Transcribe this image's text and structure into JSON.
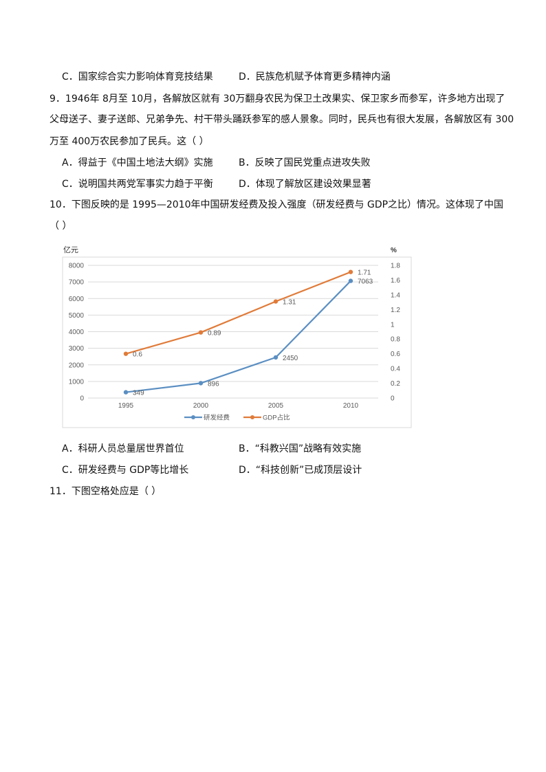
{
  "q8": {
    "option_c": "C．国家综合实力影响体育竞技结果",
    "option_d": "D．民族危机赋予体育更多精神内涵"
  },
  "q9": {
    "stem_lines": [
      "9．1946年 8月至 10月，各解放区就有 30万翻身农民为保卫土改果实、保卫家乡而参军，许多地方出现了",
      "父母送子、妻子送郎、兄弟争先、村干带头踊跃参军的感人景象。同时，民兵也有很大发展，各解放区有 300",
      "万至 400万农民参加了民兵。这（   ）"
    ],
    "option_a": "A．得益于《中国土地法大纲》实施",
    "option_b": "B．反映了国民党重点进攻失败",
    "option_c": "C．说明国共两党军事实力趋于平衡",
    "option_d": "D．体现了解放区建设效果显著"
  },
  "q10": {
    "stem_lines": [
      "10．下图反映的是 1995—2010年中国研发经费及投入强度（研发经费与 GDP之比）情况。这体现了中国",
      "（   ）"
    ],
    "option_a": "A．科研人员总量居世界首位",
    "option_b": "B．“科教兴国”战略有效实施",
    "option_c": "C．研发经费与 GDP等比增长",
    "option_d": "D．“科技创新”已成顶层设计"
  },
  "q11": {
    "stem": "11．下图空格处应是（   ）"
  },
  "chart_data": {
    "type": "line",
    "categories": [
      "1995",
      "2000",
      "2005",
      "2010"
    ],
    "y_left_label": "亿元",
    "y_right_label": "%",
    "ylim_left": [
      0,
      8000
    ],
    "yticks_left": [
      "0",
      "1000",
      "2000",
      "3000",
      "4000",
      "5000",
      "6000",
      "7000",
      "8000"
    ],
    "ylim_right": [
      0,
      1.8
    ],
    "yticks_right": [
      "0",
      "0.2",
      "0.4",
      "0.6",
      "0.8",
      "1",
      "1.2",
      "1.4",
      "1.6",
      "1.8"
    ],
    "grid": true,
    "legend_position": "bottom",
    "series": [
      {
        "name": "研发经费",
        "axis": "left",
        "values": [
          349,
          896,
          2450,
          7063
        ],
        "labels": [
          "349",
          "896",
          "2450",
          "7063"
        ],
        "color": "#5B8FC2"
      },
      {
        "name": "GDP占比",
        "axis": "right",
        "values": [
          0.6,
          0.89,
          1.31,
          1.71
        ],
        "labels": [
          "0.6",
          "0.89",
          "1.31",
          "1.71"
        ],
        "color": "#E07B39"
      }
    ]
  }
}
